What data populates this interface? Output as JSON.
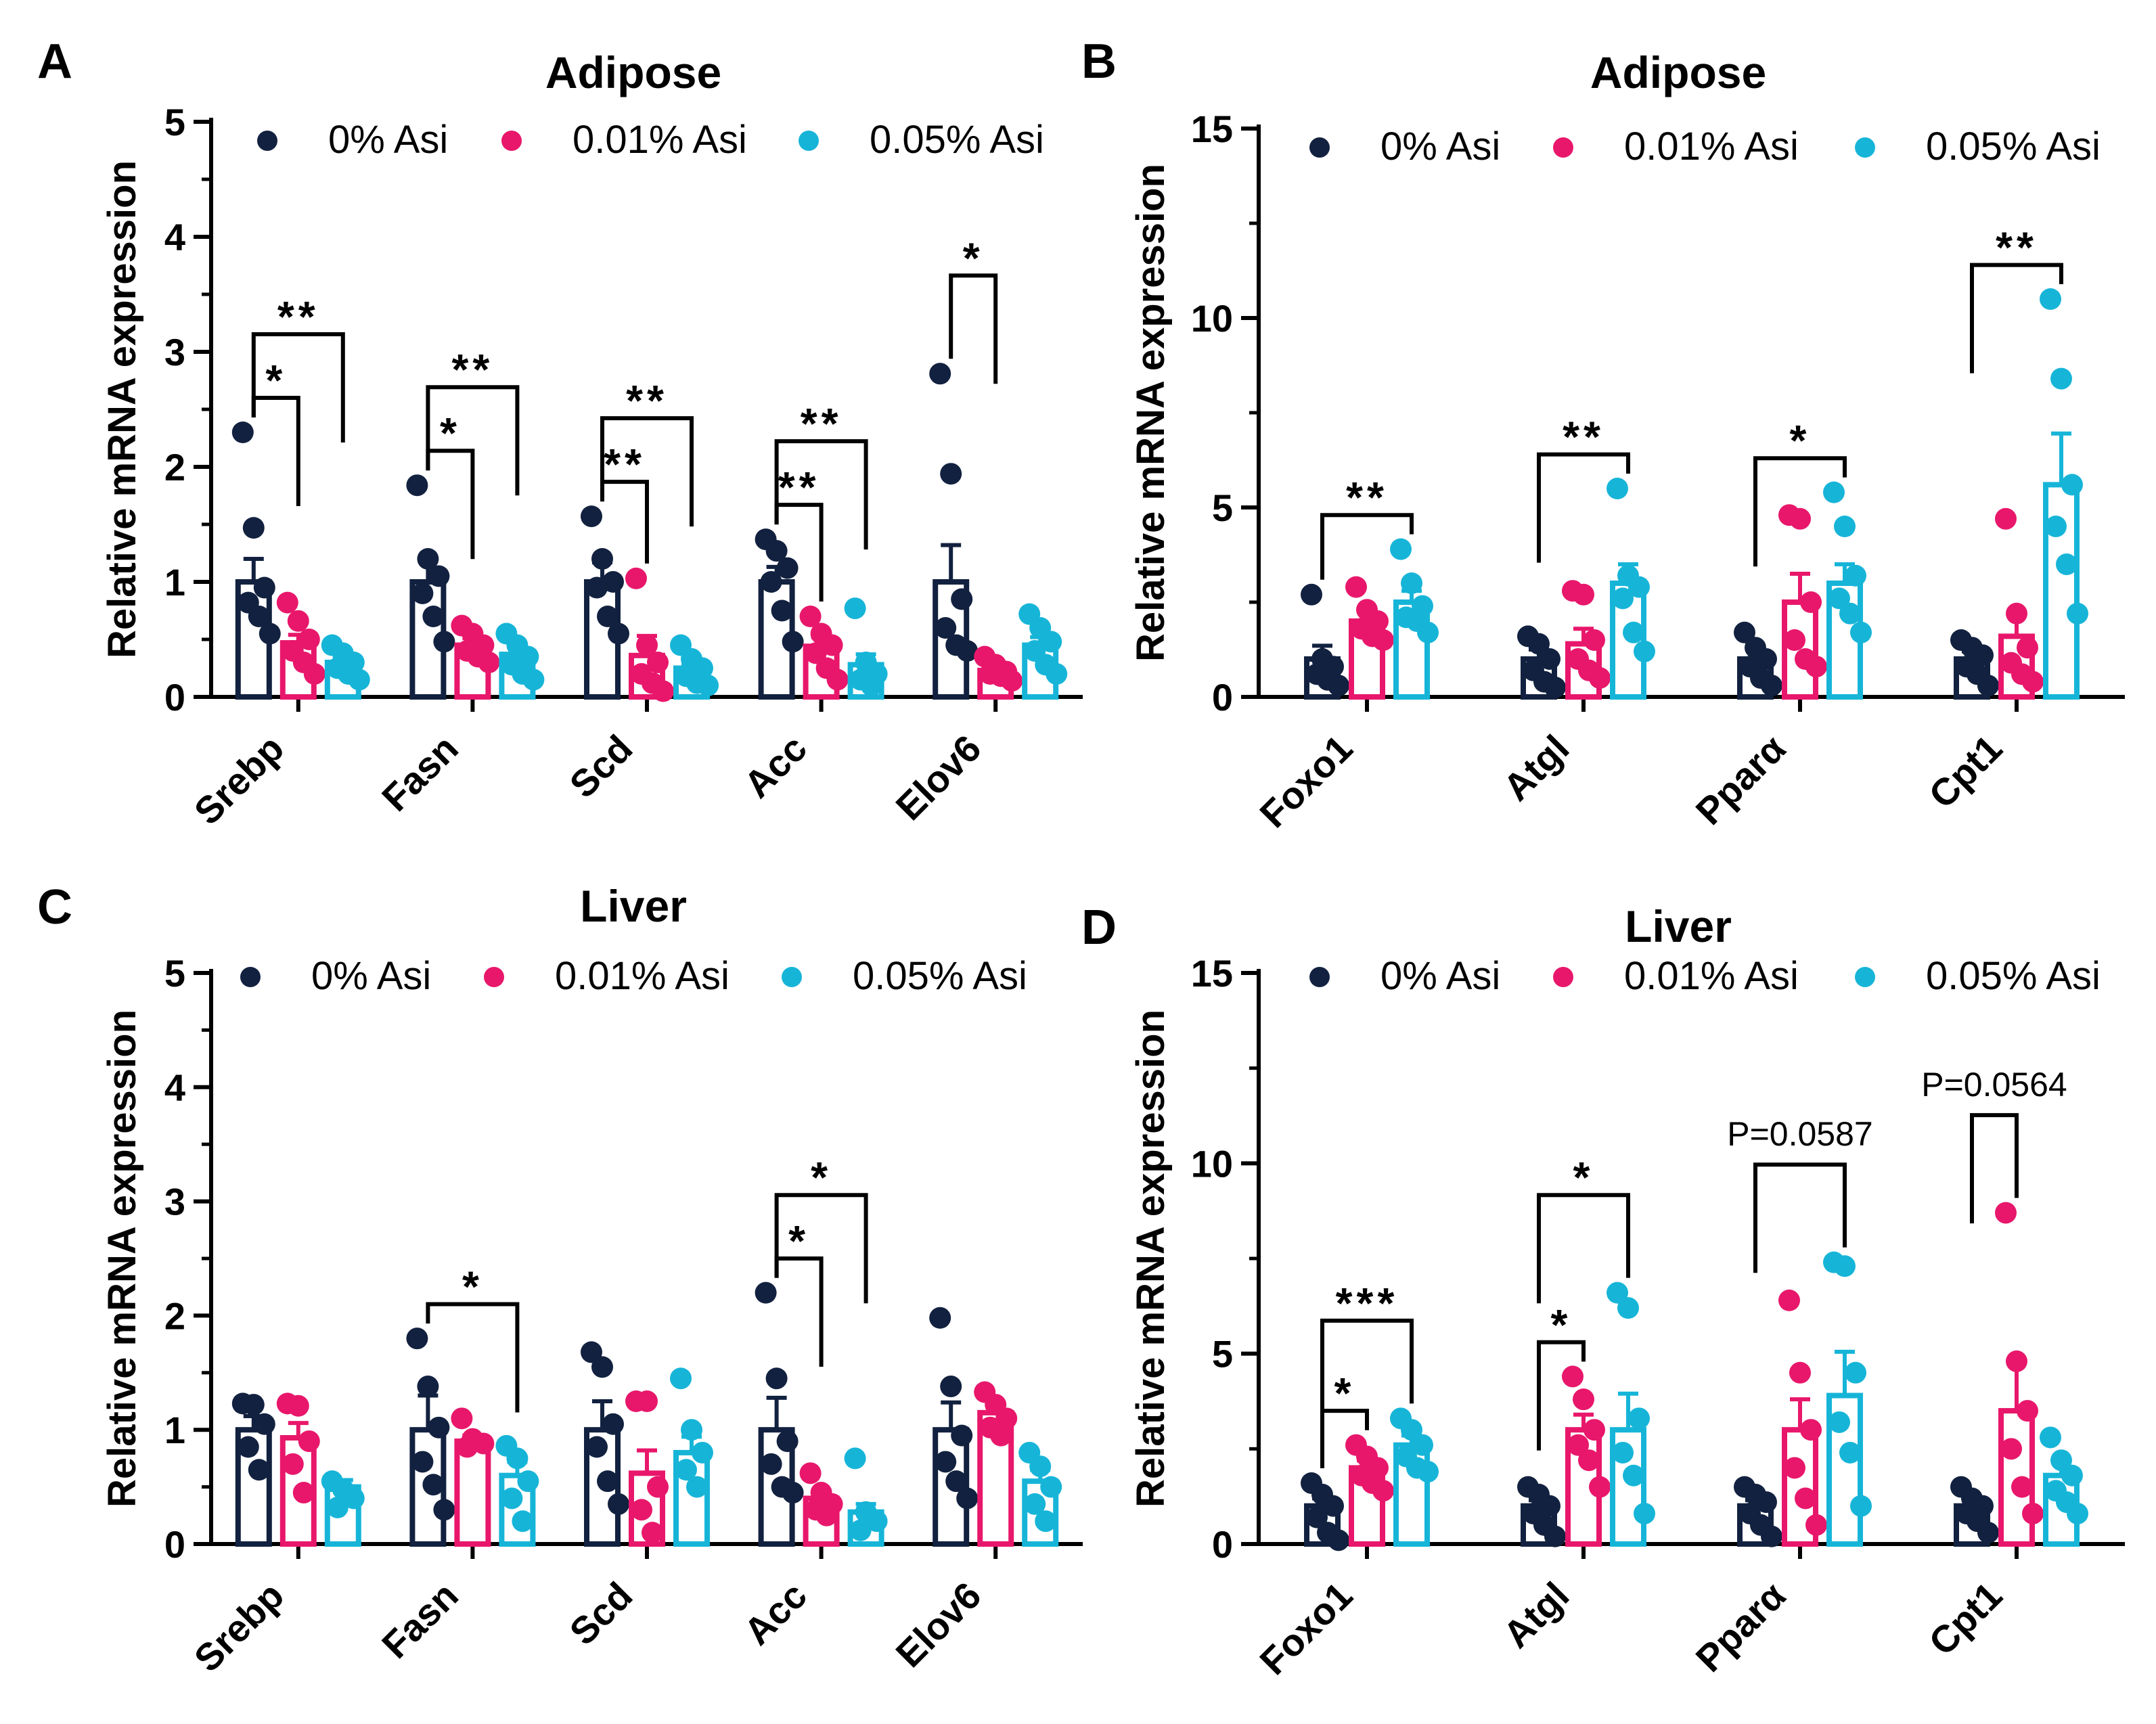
{
  "legend": [
    "0% Asi",
    "0.01% Asi",
    "0.05% Asi"
  ],
  "colors": [
    "#12213f",
    "#e8176b",
    "#16b5d8"
  ],
  "chart_data": [
    {
      "panel": "A",
      "type": "bar",
      "title": "Adipose",
      "ylabel": "Relative mRNA expression",
      "ylim": [
        0,
        5
      ],
      "yticks": [
        0,
        1,
        2,
        3,
        4,
        5
      ],
      "categories": [
        "Srebp",
        "Fasn",
        "Scd",
        "Acc",
        "Elov6"
      ],
      "series": [
        {
          "name": "0% Asi",
          "values": [
            1.0,
            1.0,
            1.0,
            1.0,
            1.0
          ],
          "errors": [
            0.2,
            0.18,
            0.17,
            0.13,
            0.32
          ],
          "points": [
            [
              2.3,
              1.47,
              0.95,
              0.82,
              0.7,
              0.55
            ],
            [
              1.84,
              1.2,
              1.05,
              0.9,
              0.7,
              0.48
            ],
            [
              1.57,
              1.2,
              1.0,
              0.95,
              0.7,
              0.55
            ],
            [
              1.37,
              1.27,
              1.12,
              1.0,
              0.75,
              0.48
            ],
            [
              2.81,
              1.94,
              0.85,
              0.6,
              0.45,
              0.4
            ]
          ]
        },
        {
          "name": "0.01% Asi",
          "values": [
            0.47,
            0.45,
            0.36,
            0.44,
            0.23
          ],
          "errors": [
            0.07,
            0.06,
            0.17,
            0.08,
            0.04
          ],
          "points": [
            [
              0.82,
              0.66,
              0.5,
              0.4,
              0.3,
              0.2
            ],
            [
              0.62,
              0.55,
              0.45,
              0.4,
              0.35,
              0.3
            ],
            [
              1.03,
              0.45,
              0.3,
              0.2,
              0.12,
              0.05
            ],
            [
              0.7,
              0.55,
              0.45,
              0.38,
              0.25,
              0.15
            ],
            [
              0.35,
              0.28,
              0.22,
              0.2,
              0.18,
              0.14
            ]
          ]
        },
        {
          "name": "0.05% Asi",
          "values": [
            0.3,
            0.37,
            0.25,
            0.28,
            0.45
          ],
          "errors": [
            0.04,
            0.06,
            0.04,
            0.09,
            0.07
          ],
          "points": [
            [
              0.45,
              0.38,
              0.3,
              0.25,
              0.2,
              0.15
            ],
            [
              0.55,
              0.45,
              0.35,
              0.28,
              0.2,
              0.15
            ],
            [
              0.45,
              0.33,
              0.25,
              0.18,
              0.12,
              0.1
            ],
            [
              0.77,
              0.3,
              0.2,
              0.15,
              0.1
            ],
            [
              0.72,
              0.6,
              0.48,
              0.4,
              0.28,
              0.2
            ]
          ]
        }
      ],
      "significance": [
        {
          "category": 0,
          "from": 0,
          "to": 1,
          "level": 1,
          "label": "*"
        },
        {
          "category": 0,
          "from": 0,
          "to": 2,
          "level": 2,
          "label": "**"
        },
        {
          "category": 1,
          "from": 0,
          "to": 1,
          "level": 1,
          "label": "*"
        },
        {
          "category": 1,
          "from": 0,
          "to": 2,
          "level": 2,
          "label": "**"
        },
        {
          "category": 2,
          "from": 0,
          "to": 1,
          "level": 1,
          "label": "**"
        },
        {
          "category": 2,
          "from": 0,
          "to": 2,
          "level": 2,
          "label": "**"
        },
        {
          "category": 3,
          "from": 0,
          "to": 1,
          "level": 1,
          "label": "**"
        },
        {
          "category": 3,
          "from": 0,
          "to": 2,
          "level": 2,
          "label": "**"
        },
        {
          "category": 4,
          "from": 0,
          "to": 1,
          "level": 2,
          "label": "*"
        }
      ]
    },
    {
      "panel": "B",
      "type": "bar",
      "title": "Adipose",
      "ylabel": "Relative mRNA expression",
      "ylim": [
        0,
        15
      ],
      "yticks": [
        0,
        5,
        10,
        15
      ],
      "categories": [
        "Foxo1",
        "Atgl",
        "Pparα",
        "Cpt1"
      ],
      "series": [
        {
          "name": "0% Asi",
          "values": [
            1.0,
            1.0,
            1.0,
            1.0
          ],
          "errors": [
            0.35,
            0.25,
            0.25,
            0.2
          ],
          "points": [
            [
              2.7,
              1.0,
              0.8,
              0.6,
              0.45,
              0.3
            ],
            [
              1.6,
              1.4,
              1.0,
              0.7,
              0.4,
              0.25
            ],
            [
              1.7,
              1.3,
              1.0,
              0.8,
              0.5,
              0.3
            ],
            [
              1.5,
              1.3,
              1.1,
              0.8,
              0.6,
              0.3
            ]
          ]
        },
        {
          "name": "0.01% Asi",
          "values": [
            2.0,
            1.4,
            2.5,
            1.6
          ],
          "errors": [
            0.25,
            0.4,
            0.75,
            0.6
          ],
          "points": [
            [
              2.9,
              2.3,
              2.0,
              1.8,
              1.6,
              1.5
            ],
            [
              2.8,
              2.7,
              1.5,
              1.0,
              0.7,
              0.5
            ],
            [
              4.8,
              4.7,
              2.5,
              1.5,
              1.0,
              0.8
            ],
            [
              4.7,
              2.2,
              1.3,
              0.9,
              0.6,
              0.4
            ]
          ]
        },
        {
          "name": "0.05% Asi",
          "values": [
            2.5,
            3.0,
            3.0,
            5.6
          ],
          "errors": [
            0.3,
            0.5,
            0.5,
            1.35
          ],
          "points": [
            [
              3.9,
              3.0,
              2.4,
              2.1,
              2.0,
              1.7
            ],
            [
              5.5,
              3.2,
              2.9,
              2.6,
              1.7,
              1.2
            ],
            [
              5.4,
              4.5,
              3.2,
              2.6,
              2.2,
              1.7
            ],
            [
              10.5,
              8.4,
              5.6,
              4.5,
              3.5,
              2.2
            ]
          ]
        }
      ],
      "significance": [
        {
          "category": 0,
          "from": 0,
          "to": 2,
          "level": 1,
          "label": "**"
        },
        {
          "category": 1,
          "from": 0,
          "to": 2,
          "level": 1,
          "label": "**"
        },
        {
          "category": 2,
          "from": 0,
          "to": 2,
          "level": 1,
          "label": "*"
        },
        {
          "category": 3,
          "from": 0,
          "to": 2,
          "level": 1,
          "label": "**"
        }
      ]
    },
    {
      "panel": "C",
      "type": "bar",
      "title": "Liver",
      "ylabel": "Relative mRNA expression",
      "ylim": [
        0,
        5
      ],
      "yticks": [
        0,
        1,
        2,
        3,
        4,
        5
      ],
      "categories": [
        "Srebp",
        "Fasn",
        "Scd",
        "Acc",
        "Elov6"
      ],
      "series": [
        {
          "name": "0% Asi",
          "values": [
            1.0,
            1.0,
            1.0,
            1.0,
            1.0
          ],
          "errors": [
            0.12,
            0.3,
            0.25,
            0.28,
            0.24
          ],
          "points": [
            [
              1.23,
              1.22,
              1.05,
              0.85,
              0.65
            ],
            [
              1.8,
              1.38,
              1.02,
              0.72,
              0.52,
              0.3
            ],
            [
              1.68,
              1.55,
              1.05,
              0.85,
              0.55,
              0.35
            ],
            [
              2.2,
              1.45,
              0.9,
              0.7,
              0.5,
              0.45
            ],
            [
              1.98,
              1.38,
              0.95,
              0.72,
              0.55,
              0.4
            ]
          ]
        },
        {
          "name": "0.01% Asi",
          "values": [
            0.93,
            0.9,
            0.62,
            0.4,
            1.15
          ],
          "errors": [
            0.13,
            0.05,
            0.2,
            0.07,
            0.08
          ],
          "points": [
            [
              1.23,
              1.21,
              0.9,
              0.7,
              0.45
            ],
            [
              1.1,
              0.92,
              0.88,
              0.85
            ],
            [
              1.25,
              1.25,
              0.5,
              0.3,
              0.1
            ],
            [
              0.62,
              0.45,
              0.35,
              0.3,
              0.25
            ],
            [
              1.33,
              1.22,
              1.1,
              1.02,
              0.95
            ]
          ]
        },
        {
          "name": "0.05% Asi",
          "values": [
            0.5,
            0.6,
            0.8,
            0.28,
            0.55
          ],
          "errors": [
            0.06,
            0.12,
            0.14,
            0.07,
            0.1
          ],
          "points": [
            [
              0.55,
              0.48,
              0.4,
              0.32
            ],
            [
              0.86,
              0.75,
              0.55,
              0.4,
              0.2
            ],
            [
              1.45,
              1.0,
              0.8,
              0.65,
              0.5
            ],
            [
              0.75,
              0.28,
              0.2,
              0.12
            ],
            [
              0.8,
              0.68,
              0.5,
              0.35,
              0.2
            ]
          ]
        }
      ],
      "significance": [
        {
          "category": 1,
          "from": 0,
          "to": 2,
          "level": 1,
          "label": "*"
        },
        {
          "category": 3,
          "from": 0,
          "to": 1,
          "level": 1,
          "label": "*"
        },
        {
          "category": 3,
          "from": 0,
          "to": 2,
          "level": 2,
          "label": "*"
        }
      ]
    },
    {
      "panel": "D",
      "type": "bar",
      "title": "Liver",
      "ylabel": "Relative mRNA expression",
      "ylim": [
        0,
        15
      ],
      "yticks": [
        0,
        5,
        10,
        15
      ],
      "categories": [
        "Foxo1",
        "Atgl",
        "Pparα",
        "Cpt1"
      ],
      "series": [
        {
          "name": "0% Asi",
          "values": [
            1.0,
            1.0,
            1.0,
            1.0
          ],
          "errors": [
            0.2,
            0.15,
            0.15,
            0.15
          ],
          "points": [
            [
              1.6,
              1.3,
              1.0,
              0.7,
              0.3,
              0.1
            ],
            [
              1.5,
              1.3,
              1.0,
              0.8,
              0.5,
              0.2
            ],
            [
              1.5,
              1.3,
              1.1,
              0.8,
              0.5,
              0.2
            ],
            [
              1.5,
              1.2,
              1.0,
              0.8,
              0.6,
              0.3
            ]
          ]
        },
        {
          "name": "0.01% Asi",
          "values": [
            2.0,
            3.0,
            3.0,
            3.5
          ],
          "errors": [
            0.2,
            0.4,
            0.8,
            1.3
          ],
          "points": [
            [
              2.6,
              2.3,
              2.0,
              1.8,
              1.6,
              1.4
            ],
            [
              4.4,
              3.8,
              3.0,
              2.6,
              2.2,
              1.5
            ],
            [
              6.4,
              4.5,
              3.0,
              2.0,
              1.2,
              0.5
            ],
            [
              8.7,
              4.8,
              3.5,
              2.5,
              1.5,
              0.8
            ]
          ]
        },
        {
          "name": "0.05% Asi",
          "values": [
            2.6,
            3.0,
            3.9,
            1.8
          ],
          "errors": [
            0.25,
            0.95,
            1.15,
            0.35
          ],
          "points": [
            [
              3.3,
              3.0,
              2.6,
              2.3,
              2.0,
              1.9
            ],
            [
              6.6,
              6.2,
              3.3,
              2.4,
              1.8,
              0.8
            ],
            [
              7.4,
              7.3,
              4.5,
              3.2,
              2.4,
              1.0
            ],
            [
              2.8,
              2.2,
              1.8,
              1.4,
              1.1,
              0.8
            ]
          ]
        }
      ],
      "significance": [
        {
          "category": 0,
          "from": 0,
          "to": 1,
          "level": 1,
          "label": "*"
        },
        {
          "category": 0,
          "from": 0,
          "to": 2,
          "level": 2,
          "label": "***"
        },
        {
          "category": 1,
          "from": 0,
          "to": 1,
          "level": 1,
          "label": "*"
        },
        {
          "category": 1,
          "from": 0,
          "to": 2,
          "level": 2,
          "label": "*"
        },
        {
          "category": 2,
          "from": 0,
          "to": 2,
          "level": 2,
          "label": "P=0.0587",
          "style": "text"
        },
        {
          "category": 3,
          "from": 0,
          "to": 1,
          "level": 2,
          "label": "P=0.0564",
          "style": "text"
        }
      ]
    }
  ]
}
